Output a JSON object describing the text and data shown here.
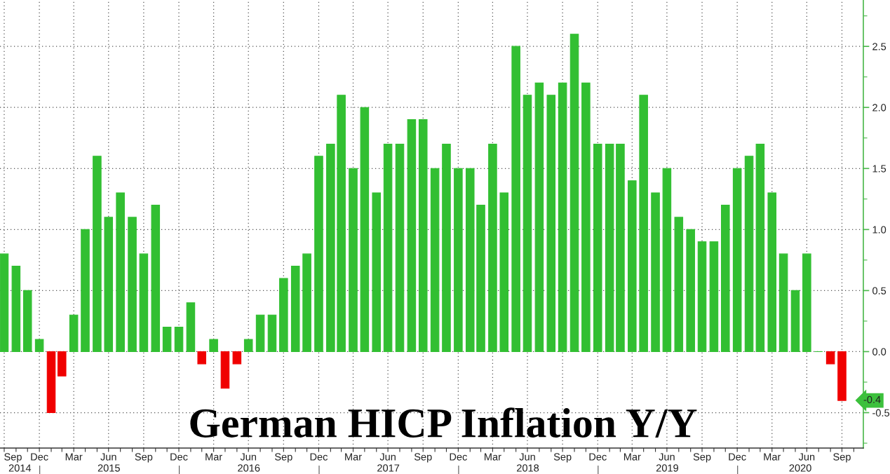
{
  "chart_data": {
    "type": "bar",
    "title": "German HICP Inflation Y/Y",
    "x": [
      "2014-09-30",
      "2014-10-31",
      "2014-11-30",
      "2014-12-31",
      "2015-01-31",
      "2015-02-28",
      "2015-03-31",
      "2015-04-30",
      "2015-05-31",
      "2015-06-30",
      "2015-07-31",
      "2015-08-31",
      "2015-09-30",
      "2015-10-31",
      "2015-11-30",
      "2015-12-31",
      "2016-01-31",
      "2016-02-29",
      "2016-03-31",
      "2016-04-30",
      "2016-05-31",
      "2016-06-30",
      "2016-07-31",
      "2016-08-31",
      "2016-09-30",
      "2016-10-31",
      "2016-11-30",
      "2016-12-31",
      "2017-01-31",
      "2017-02-28",
      "2017-03-31",
      "2017-04-30",
      "2017-05-31",
      "2017-06-30",
      "2017-07-31",
      "2017-08-31",
      "2017-09-30",
      "2017-10-31",
      "2017-11-30",
      "2017-12-31",
      "2018-01-31",
      "2018-02-28",
      "2018-03-31",
      "2018-04-30",
      "2018-05-31",
      "2018-06-30",
      "2018-07-31",
      "2018-08-31",
      "2018-09-30",
      "2018-10-31",
      "2018-11-30",
      "2018-12-31",
      "2019-01-31",
      "2019-02-28",
      "2019-03-31",
      "2019-04-30",
      "2019-05-31",
      "2019-06-30",
      "2019-07-31",
      "2019-08-31",
      "2019-09-30",
      "2019-10-31",
      "2019-11-30",
      "2019-12-31",
      "2020-01-31",
      "2020-02-29",
      "2020-03-31",
      "2020-04-30",
      "2020-05-31",
      "2020-06-30",
      "2020-07-31",
      "2020-08-31",
      "2020-09-30"
    ],
    "values": [
      0.8,
      0.7,
      0.5,
      0.1,
      -0.5,
      -0.2,
      0.3,
      1.0,
      1.6,
      1.1,
      1.3,
      1.1,
      0.8,
      1.2,
      0.2,
      0.2,
      0.4,
      -0.1,
      0.1,
      -0.3,
      -0.1,
      0.1,
      0.3,
      0.3,
      0.6,
      0.7,
      0.8,
      1.6,
      1.7,
      2.1,
      1.5,
      2.0,
      1.3,
      1.7,
      1.7,
      1.9,
      1.9,
      1.5,
      1.7,
      1.5,
      1.5,
      1.2,
      1.7,
      1.3,
      2.5,
      2.1,
      2.2,
      2.1,
      2.2,
      2.6,
      2.2,
      1.7,
      1.7,
      1.7,
      1.4,
      2.1,
      1.3,
      1.5,
      1.1,
      1.0,
      0.9,
      0.9,
      1.2,
      1.5,
      1.6,
      1.7,
      1.3,
      0.8,
      0.5,
      0.8,
      0.0,
      -0.1,
      -0.4
    ],
    "colors": [
      "#32bf32",
      "#32bf32",
      "#32bf32",
      "#32bf32",
      "#f00000",
      "#f00000",
      "#32bf32",
      "#32bf32",
      "#32bf32",
      "#32bf32",
      "#32bf32",
      "#32bf32",
      "#32bf32",
      "#32bf32",
      "#32bf32",
      "#32bf32",
      "#32bf32",
      "#f00000",
      "#32bf32",
      "#f00000",
      "#f00000",
      "#32bf32",
      "#32bf32",
      "#32bf32",
      "#32bf32",
      "#32bf32",
      "#32bf32",
      "#32bf32",
      "#32bf32",
      "#32bf32",
      "#32bf32",
      "#32bf32",
      "#32bf32",
      "#32bf32",
      "#32bf32",
      "#32bf32",
      "#32bf32",
      "#32bf32",
      "#32bf32",
      "#32bf32",
      "#32bf32",
      "#32bf32",
      "#32bf32",
      "#32bf32",
      "#32bf32",
      "#32bf32",
      "#32bf32",
      "#32bf32",
      "#32bf32",
      "#32bf32",
      "#32bf32",
      "#32bf32",
      "#32bf32",
      "#32bf32",
      "#32bf32",
      "#32bf32",
      "#32bf32",
      "#32bf32",
      "#32bf32",
      "#32bf32",
      "#32bf32",
      "#32bf32",
      "#32bf32",
      "#32bf32",
      "#32bf32",
      "#32bf32",
      "#32bf32",
      "#32bf32",
      "#32bf32",
      "#32bf32",
      "#32bf32",
      "#f00000",
      "#f00000"
    ],
    "annotations": [
      {
        "text": "-0.4",
        "x": "2020-09-30",
        "y": -0.4
      }
    ],
    "xlim": [
      "2014-09-19",
      "2020-11-25"
    ],
    "xticks": [
      {
        "value": "2014-09-30",
        "label": "Sep"
      },
      {
        "value": "2014-10-31",
        "label": null
      },
      {
        "value": "2014-11-30",
        "label": null
      },
      {
        "value": "2014-12-31",
        "label": "Dec"
      },
      {
        "value": "2015-01-31",
        "label": null
      },
      {
        "value": "2015-02-28",
        "label": null
      },
      {
        "value": "2015-03-31",
        "label": "Mar"
      },
      {
        "value": "2015-04-30",
        "label": null
      },
      {
        "value": "2015-05-31",
        "label": null
      },
      {
        "value": "2015-06-30",
        "label": "Jun"
      },
      {
        "value": "2015-07-31",
        "label": null
      },
      {
        "value": "2015-08-31",
        "label": null
      },
      {
        "value": "2015-09-30",
        "label": "Sep"
      },
      {
        "value": "2015-10-31",
        "label": null
      },
      {
        "value": "2015-11-30",
        "label": null
      },
      {
        "value": "2015-12-31",
        "label": "Dec"
      },
      {
        "value": "2016-01-31",
        "label": null
      },
      {
        "value": "2016-02-29",
        "label": null
      },
      {
        "value": "2016-03-31",
        "label": "Mar"
      },
      {
        "value": "2016-04-30",
        "label": null
      },
      {
        "value": "2016-05-31",
        "label": null
      },
      {
        "value": "2016-06-30",
        "label": "Jun"
      },
      {
        "value": "2016-07-31",
        "label": null
      },
      {
        "value": "2016-08-31",
        "label": null
      },
      {
        "value": "2016-09-30",
        "label": "Sep"
      },
      {
        "value": "2016-10-31",
        "label": null
      },
      {
        "value": "2016-11-30",
        "label": null
      },
      {
        "value": "2016-12-31",
        "label": "Dec"
      },
      {
        "value": "2017-01-31",
        "label": null
      },
      {
        "value": "2017-02-28",
        "label": null
      },
      {
        "value": "2017-03-31",
        "label": "Mar"
      },
      {
        "value": "2017-04-30",
        "label": null
      },
      {
        "value": "2017-05-31",
        "label": null
      },
      {
        "value": "2017-06-30",
        "label": "Jun"
      },
      {
        "value": "2017-07-31",
        "label": null
      },
      {
        "value": "2017-08-31",
        "label": null
      },
      {
        "value": "2017-09-30",
        "label": "Sep"
      },
      {
        "value": "2017-10-31",
        "label": null
      },
      {
        "value": "2017-11-30",
        "label": null
      },
      {
        "value": "2017-12-31",
        "label": "Dec"
      },
      {
        "value": "2018-01-31",
        "label": null
      },
      {
        "value": "2018-02-28",
        "label": null
      },
      {
        "value": "2018-03-31",
        "label": "Mar"
      },
      {
        "value": "2018-04-30",
        "label": null
      },
      {
        "value": "2018-05-31",
        "label": null
      },
      {
        "value": "2018-06-30",
        "label": "Jun"
      },
      {
        "value": "2018-07-31",
        "label": null
      },
      {
        "value": "2018-08-31",
        "label": null
      },
      {
        "value": "2018-09-30",
        "label": "Sep"
      },
      {
        "value": "2018-10-31",
        "label": null
      },
      {
        "value": "2018-11-30",
        "label": null
      },
      {
        "value": "2018-12-31",
        "label": "Dec"
      },
      {
        "value": "2019-01-31",
        "label": null
      },
      {
        "value": "2019-02-28",
        "label": null
      },
      {
        "value": "2019-03-31",
        "label": "Mar"
      },
      {
        "value": "2019-04-30",
        "label": null
      },
      {
        "value": "2019-05-31",
        "label": null
      },
      {
        "value": "2019-06-30",
        "label": "Jun"
      },
      {
        "value": "2019-07-31",
        "label": null
      },
      {
        "value": "2019-08-31",
        "label": null
      },
      {
        "value": "2019-09-30",
        "label": "Sep"
      },
      {
        "value": "2019-10-31",
        "label": null
      },
      {
        "value": "2019-11-30",
        "label": null
      },
      {
        "value": "2019-12-31",
        "label": "Dec"
      },
      {
        "value": "2020-01-31",
        "label": null
      },
      {
        "value": "2020-02-29",
        "label": null
      },
      {
        "value": "2020-03-31",
        "label": "Mar"
      },
      {
        "value": "2020-04-30",
        "label": null
      },
      {
        "value": "2020-05-31",
        "label": null
      },
      {
        "value": "2020-06-30",
        "label": "Jun"
      },
      {
        "value": "2020-07-31",
        "label": null
      },
      {
        "value": "2020-08-31",
        "label": null
      },
      {
        "value": "2020-09-30",
        "label": "Sep"
      },
      {
        "value": "2020-10-31",
        "label": null
      }
    ],
    "x2lim": [
      "2014-09-19",
      "2020-11-25"
    ],
    "x2ticks": [
      {
        "value": "2014-11-10",
        "label": "2014"
      },
      {
        "value": "2015-01-01",
        "label": null
      },
      {
        "value": "2015-07-01",
        "label": "2015"
      },
      {
        "value": "2016-01-01",
        "label": null
      },
      {
        "value": "2016-07-01",
        "label": "2016"
      },
      {
        "value": "2017-01-01",
        "label": null
      },
      {
        "value": "2017-07-01",
        "label": "2017"
      },
      {
        "value": "2018-01-01",
        "label": null
      },
      {
        "value": "2018-07-01",
        "label": "2018"
      },
      {
        "value": "2019-01-01",
        "label": null
      },
      {
        "value": "2019-07-01",
        "label": "2019"
      },
      {
        "value": "2020-01-01",
        "label": null
      },
      {
        "value": "2020-06-13",
        "label": "2020"
      }
    ],
    "ylim": [
      -0.79,
      2.88
    ],
    "yticks": [
      {
        "value": -0.75,
        "label": null
      },
      {
        "value": -0.5,
        "label": "-0.5"
      },
      {
        "value": -0.25,
        "label": null
      },
      {
        "value": 0,
        "label": "0.0"
      },
      {
        "value": 0.25,
        "label": null
      },
      {
        "value": 0.5,
        "label": "0.5"
      },
      {
        "value": 0.75,
        "label": null
      },
      {
        "value": 1,
        "label": "1.0"
      },
      {
        "value": 1.25,
        "label": null
      },
      {
        "value": 1.5,
        "label": "1.5"
      },
      {
        "value": 1.75,
        "label": null
      },
      {
        "value": 2,
        "label": "2.0"
      },
      {
        "value": 2.25,
        "label": null
      },
      {
        "value": 2.5,
        "label": "2.5"
      },
      {
        "value": 2.75,
        "label": null
      }
    ],
    "grid": true
  }
}
